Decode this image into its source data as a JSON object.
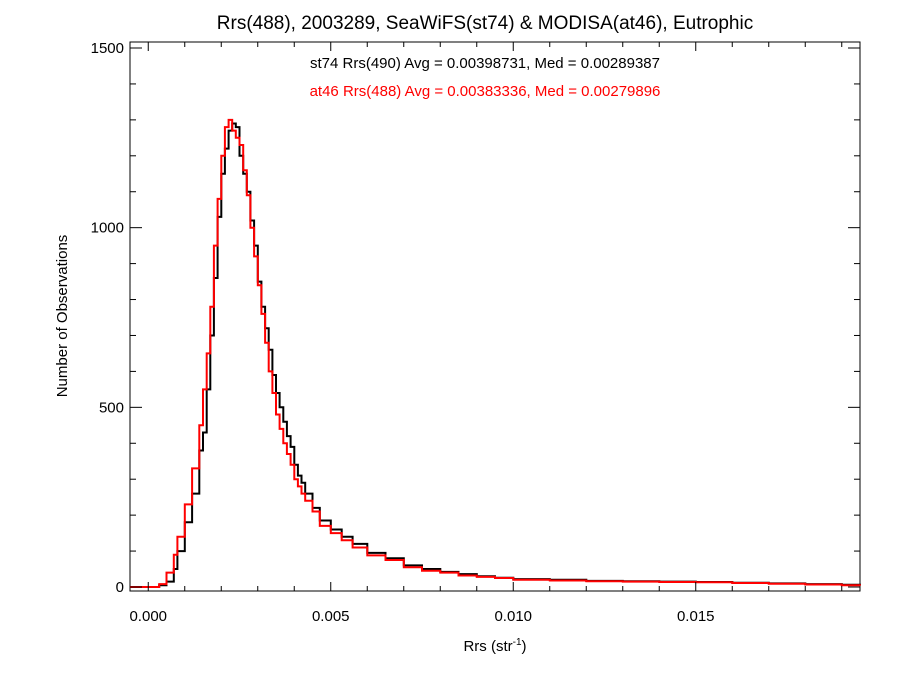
{
  "chart_data": {
    "type": "line",
    "step": true,
    "title": "Rrs(488), 2003289, SeaWiFS(st74) & MODISA(at46), Eutrophic",
    "xlabel_base": "Rrs (str",
    "xlabel_sup": "-1",
    "xlabel_close": ")",
    "ylabel": "Number of Observations",
    "xlim": [
      -0.0005,
      0.0195
    ],
    "ylim": [
      0,
      1500
    ],
    "xticks": [
      0.0,
      0.005,
      0.01,
      0.015
    ],
    "xtick_labels": [
      "0.000",
      "0.005",
      "0.010",
      "0.015"
    ],
    "yticks": [
      0,
      500,
      1000,
      1500
    ],
    "ytick_labels": [
      "0",
      "500",
      "1000",
      "1500"
    ],
    "grid": false,
    "annotations": [
      {
        "text": "st74 Rrs(490) Avg = 0.00398731, Med = 0.00289387",
        "color": "#000000"
      },
      {
        "text": "at46 Rrs(488) Avg = 0.00383336, Med = 0.00279896",
        "color": "#ff0000"
      }
    ],
    "series": [
      {
        "color": "#000000",
        "points": [
          [
            0.0,
            0
          ],
          [
            0.0003,
            5
          ],
          [
            0.0005,
            15
          ],
          [
            0.0007,
            50
          ],
          [
            0.0008,
            100
          ],
          [
            0.001,
            180
          ],
          [
            0.0012,
            260
          ],
          [
            0.0014,
            380
          ],
          [
            0.0015,
            430
          ],
          [
            0.0016,
            550
          ],
          [
            0.0017,
            700
          ],
          [
            0.0018,
            860
          ],
          [
            0.0019,
            1030
          ],
          [
            0.002,
            1150
          ],
          [
            0.0021,
            1220
          ],
          [
            0.0022,
            1270
          ],
          [
            0.0023,
            1290
          ],
          [
            0.0024,
            1280
          ],
          [
            0.0025,
            1200
          ],
          [
            0.0026,
            1150
          ],
          [
            0.0027,
            1100
          ],
          [
            0.0028,
            1020
          ],
          [
            0.0029,
            950
          ],
          [
            0.003,
            850
          ],
          [
            0.0031,
            780
          ],
          [
            0.0032,
            720
          ],
          [
            0.0033,
            660
          ],
          [
            0.0034,
            590
          ],
          [
            0.0035,
            540
          ],
          [
            0.0036,
            500
          ],
          [
            0.0037,
            460
          ],
          [
            0.0038,
            420
          ],
          [
            0.0039,
            390
          ],
          [
            0.004,
            340
          ],
          [
            0.0041,
            310
          ],
          [
            0.0042,
            290
          ],
          [
            0.0043,
            260
          ],
          [
            0.0045,
            220
          ],
          [
            0.0047,
            185
          ],
          [
            0.005,
            160
          ],
          [
            0.0053,
            140
          ],
          [
            0.0056,
            120
          ],
          [
            0.006,
            95
          ],
          [
            0.0065,
            80
          ],
          [
            0.007,
            60
          ],
          [
            0.0075,
            50
          ],
          [
            0.008,
            42
          ],
          [
            0.0085,
            36
          ],
          [
            0.009,
            30
          ],
          [
            0.0095,
            26
          ],
          [
            0.01,
            22
          ],
          [
            0.011,
            20
          ],
          [
            0.012,
            17
          ],
          [
            0.013,
            16
          ],
          [
            0.014,
            15
          ],
          [
            0.015,
            14
          ],
          [
            0.016,
            12
          ],
          [
            0.017,
            10
          ],
          [
            0.018,
            8
          ],
          [
            0.019,
            6
          ],
          [
            0.0195,
            5
          ]
        ]
      },
      {
        "color": "#ff0000",
        "points": [
          [
            0.0,
            0
          ],
          [
            0.0003,
            8
          ],
          [
            0.0005,
            40
          ],
          [
            0.0007,
            90
          ],
          [
            0.0008,
            140
          ],
          [
            0.001,
            230
          ],
          [
            0.0012,
            330
          ],
          [
            0.0014,
            450
          ],
          [
            0.0015,
            550
          ],
          [
            0.0016,
            650
          ],
          [
            0.0017,
            780
          ],
          [
            0.0018,
            950
          ],
          [
            0.0019,
            1080
          ],
          [
            0.002,
            1200
          ],
          [
            0.0021,
            1280
          ],
          [
            0.0022,
            1300
          ],
          [
            0.0023,
            1270
          ],
          [
            0.0024,
            1250
          ],
          [
            0.0025,
            1230
          ],
          [
            0.0026,
            1160
          ],
          [
            0.0027,
            1090
          ],
          [
            0.0028,
            1000
          ],
          [
            0.0029,
            920
          ],
          [
            0.003,
            840
          ],
          [
            0.0031,
            760
          ],
          [
            0.0032,
            680
          ],
          [
            0.0033,
            600
          ],
          [
            0.0034,
            540
          ],
          [
            0.0035,
            480
          ],
          [
            0.0036,
            440
          ],
          [
            0.0037,
            400
          ],
          [
            0.0038,
            370
          ],
          [
            0.0039,
            340
          ],
          [
            0.004,
            300
          ],
          [
            0.0041,
            280
          ],
          [
            0.0042,
            260
          ],
          [
            0.0043,
            240
          ],
          [
            0.0045,
            210
          ],
          [
            0.0047,
            170
          ],
          [
            0.005,
            150
          ],
          [
            0.0053,
            130
          ],
          [
            0.0056,
            110
          ],
          [
            0.006,
            88
          ],
          [
            0.0065,
            75
          ],
          [
            0.007,
            55
          ],
          [
            0.0075,
            45
          ],
          [
            0.008,
            40
          ],
          [
            0.0085,
            32
          ],
          [
            0.009,
            28
          ],
          [
            0.0095,
            25
          ],
          [
            0.01,
            20
          ],
          [
            0.011,
            18
          ],
          [
            0.012,
            16
          ],
          [
            0.013,
            15
          ],
          [
            0.014,
            14
          ],
          [
            0.015,
            13
          ],
          [
            0.016,
            11
          ],
          [
            0.017,
            9
          ],
          [
            0.018,
            7
          ],
          [
            0.019,
            5
          ],
          [
            0.0195,
            4
          ]
        ]
      }
    ]
  }
}
